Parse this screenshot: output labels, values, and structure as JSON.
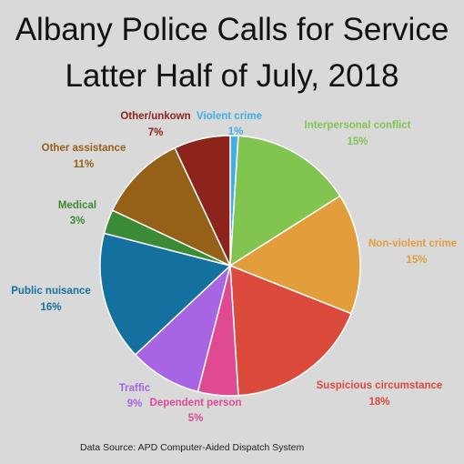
{
  "chart_data": {
    "type": "pie",
    "title": [
      "Albany Police Calls for Service",
      "Latter Half of July, 2018"
    ],
    "source": "Data Source:  APD Computer-Aided Dispatch System",
    "start_angle_deg": 0,
    "direction": "clockwise",
    "slices": [
      {
        "label": "Violent crime",
        "value": 1,
        "value_label": "1%",
        "color": "#41aee6",
        "label_color": "#41aee6"
      },
      {
        "label": "Interpersonal conflict",
        "value": 15,
        "value_label": "15%",
        "color": "#82c450",
        "label_color": "#82c450"
      },
      {
        "label": "Non-violent crime",
        "value": 15,
        "value_label": "15%",
        "color": "#e39e3c",
        "label_color": "#e39e3c"
      },
      {
        "label": "Suspicious circumstance",
        "value": 18,
        "value_label": "18%",
        "color": "#db4a3b",
        "label_color": "#db4a3b"
      },
      {
        "label": "Dependent person",
        "value": 5,
        "value_label": "5%",
        "color": "#df4a93",
        "label_color": "#df4a93"
      },
      {
        "label": "Traffic",
        "value": 9,
        "value_label": "9%",
        "color": "#a865e3",
        "label_color": "#a865e3"
      },
      {
        "label": "Public nuisance",
        "value": 16,
        "value_label": "16%",
        "color": "#14709f",
        "label_color": "#14709f"
      },
      {
        "label": "Medical",
        "value": 3,
        "value_label": "3%",
        "color": "#3b8a36",
        "label_color": "#3b8a36"
      },
      {
        "label": "Other assistance",
        "value": 11,
        "value_label": "11%",
        "color": "#956018",
        "label_color": "#956018"
      },
      {
        "label": "Other/unkown",
        "value": 7,
        "value_label": "7%",
        "color": "#8c241b",
        "label_color": "#8c241b"
      }
    ]
  }
}
